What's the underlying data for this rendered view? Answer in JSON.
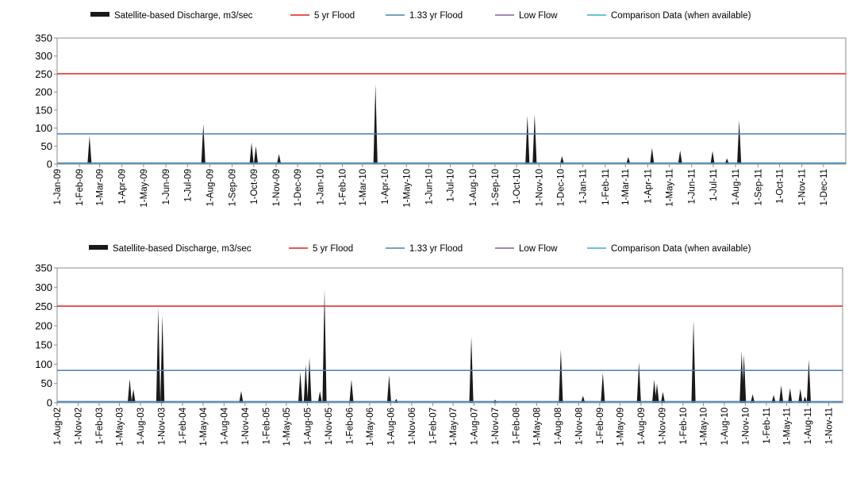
{
  "chart_data": [
    {
      "type": "area",
      "title": "",
      "xlabel": "",
      "ylabel": "",
      "ylim": [
        0,
        350
      ],
      "yticks": [
        0,
        50,
        100,
        150,
        200,
        250,
        300,
        350
      ],
      "grid": false,
      "legend_position": "top",
      "x_start": "1-Jan-09",
      "x_end": "31-Dec-11",
      "xtick_labels": [
        "1-Jan-09",
        "1-Feb-09",
        "1-Mar-09",
        "1-Apr-09",
        "1-May-09",
        "1-Jun-09",
        "1-Jul-09",
        "1-Aug-09",
        "1-Sep-09",
        "1-Oct-09",
        "1-Nov-09",
        "1-Dec-09",
        "1-Jan-10",
        "1-Feb-10",
        "1-Mar-10",
        "1-Apr-10",
        "1-May-10",
        "1-Jun-10",
        "1-Jul-10",
        "1-Aug-10",
        "1-Sep-10",
        "1-Oct-10",
        "1-Nov-10",
        "1-Dec-10",
        "1-Jan-11",
        "1-Feb-11",
        "1-Mar-11",
        "1-Apr-11",
        "1-May-11",
        "1-Jun-11",
        "1-Jul-11",
        "1-Aug-11",
        "1-Sep-11",
        "1-Oct-11",
        "1-Nov-11",
        "1-Dec-11"
      ],
      "legend": [
        {
          "name": "Satellite-based Discharge, m3/sec",
          "color": "#1a1a1a",
          "style": "area"
        },
        {
          "name": "5 yr Flood",
          "color": "#e0201b",
          "style": "line"
        },
        {
          "name": "1.33 yr Flood",
          "color": "#4a7ebb",
          "style": "line"
        },
        {
          "name": "Low Flow",
          "color": "#7f5fa8",
          "style": "line"
        },
        {
          "name": "Comparison Data (when available)",
          "color": "#3cabc9",
          "style": "line"
        }
      ],
      "reference_lines": {
        "five_yr_flood": 251,
        "one_33_yr_flood": 84,
        "low_flow": 3,
        "comparison": 2
      },
      "series": [
        {
          "name": "Satellite-based Discharge, m3/sec",
          "peaks": [
            {
              "x": "2009-02-15",
              "y": 78
            },
            {
              "x": "2009-07-23",
              "y": 112
            },
            {
              "x": "2009-09-28",
              "y": 60
            },
            {
              "x": "2009-10-04",
              "y": 50
            },
            {
              "x": "2009-11-05",
              "y": 28
            },
            {
              "x": "2010-03-19",
              "y": 222
            },
            {
              "x": "2010-10-16",
              "y": 135
            },
            {
              "x": "2010-10-26",
              "y": 138
            },
            {
              "x": "2010-12-03",
              "y": 22
            },
            {
              "x": "2011-03-05",
              "y": 20
            },
            {
              "x": "2011-04-07",
              "y": 45
            },
            {
              "x": "2011-05-16",
              "y": 38
            },
            {
              "x": "2011-06-30",
              "y": 36
            },
            {
              "x": "2011-07-20",
              "y": 16
            },
            {
              "x": "2011-08-06",
              "y": 122
            }
          ]
        }
      ]
    },
    {
      "type": "area",
      "title": "",
      "xlabel": "",
      "ylabel": "",
      "ylim": [
        0,
        350
      ],
      "yticks": [
        0,
        50,
        100,
        150,
        200,
        250,
        300,
        350
      ],
      "grid": false,
      "legend_position": "top",
      "x_start": "1-Aug-02",
      "x_end": "31-Dec-11",
      "xtick_labels": [
        "1-Aug-02",
        "1-Nov-02",
        "1-Feb-03",
        "1-May-03",
        "1-Aug-03",
        "1-Nov-03",
        "1-Feb-04",
        "1-May-04",
        "1-Aug-04",
        "1-Nov-04",
        "1-Feb-05",
        "1-May-05",
        "1-Aug-05",
        "1-Nov-05",
        "1-Feb-06",
        "1-May-06",
        "1-Aug-06",
        "1-Nov-06",
        "1-Feb-07",
        "1-May-07",
        "1-Aug-07",
        "1-Nov-07",
        "1-Feb-08",
        "1-May-08",
        "1-Aug-08",
        "1-Nov-08",
        "1-Feb-09",
        "1-May-09",
        "1-Aug-09",
        "1-Nov-09",
        "1-Feb-10",
        "1-May-10",
        "1-Aug-10",
        "1-Nov-10",
        "1-Feb-11",
        "1-May-11",
        "1-Aug-11",
        "1-Nov-11"
      ],
      "legend": [
        {
          "name": "Satellite-based Discharge, m3/sec",
          "color": "#1a1a1a",
          "style": "area"
        },
        {
          "name": "5 yr Flood",
          "color": "#e0201b",
          "style": "line"
        },
        {
          "name": "1.33 yr Flood",
          "color": "#4a7ebb",
          "style": "line"
        },
        {
          "name": "Low Flow",
          "color": "#7f5fa8",
          "style": "line"
        },
        {
          "name": "Comparison Data (when available)",
          "color": "#3cabc9",
          "style": "line"
        }
      ],
      "reference_lines": {
        "five_yr_flood": 251,
        "one_33_yr_flood": 84,
        "low_flow": 3,
        "comparison": 2
      },
      "series": [
        {
          "name": "Satellite-based Discharge, m3/sec",
          "peaks": [
            {
              "x": "2003-06-15",
              "y": 62
            },
            {
              "x": "2003-07-01",
              "y": 35
            },
            {
              "x": "2003-10-18",
              "y": 248
            },
            {
              "x": "2003-11-05",
              "y": 228
            },
            {
              "x": "2004-10-15",
              "y": 30
            },
            {
              "x": "2005-07-01",
              "y": 80
            },
            {
              "x": "2005-07-25",
              "y": 100
            },
            {
              "x": "2005-08-10",
              "y": 118
            },
            {
              "x": "2005-09-25",
              "y": 30
            },
            {
              "x": "2005-10-15",
              "y": 295
            },
            {
              "x": "2006-02-10",
              "y": 60
            },
            {
              "x": "2006-07-25",
              "y": 72
            },
            {
              "x": "2006-08-25",
              "y": 10
            },
            {
              "x": "2007-07-20",
              "y": 172
            },
            {
              "x": "2007-11-01",
              "y": 8
            },
            {
              "x": "2008-08-15",
              "y": 138
            },
            {
              "x": "2008-11-20",
              "y": 18
            },
            {
              "x": "2009-02-15",
              "y": 78
            },
            {
              "x": "2009-07-23",
              "y": 105
            },
            {
              "x": "2009-09-28",
              "y": 60
            },
            {
              "x": "2009-10-10",
              "y": 50
            },
            {
              "x": "2009-11-05",
              "y": 28
            },
            {
              "x": "2010-03-19",
              "y": 215
            },
            {
              "x": "2010-10-16",
              "y": 135
            },
            {
              "x": "2010-10-26",
              "y": 125
            },
            {
              "x": "2010-12-03",
              "y": 22
            },
            {
              "x": "2011-03-05",
              "y": 20
            },
            {
              "x": "2011-04-07",
              "y": 45
            },
            {
              "x": "2011-05-16",
              "y": 38
            },
            {
              "x": "2011-06-30",
              "y": 36
            },
            {
              "x": "2011-07-20",
              "y": 16
            },
            {
              "x": "2011-08-06",
              "y": 112
            }
          ]
        }
      ]
    }
  ]
}
